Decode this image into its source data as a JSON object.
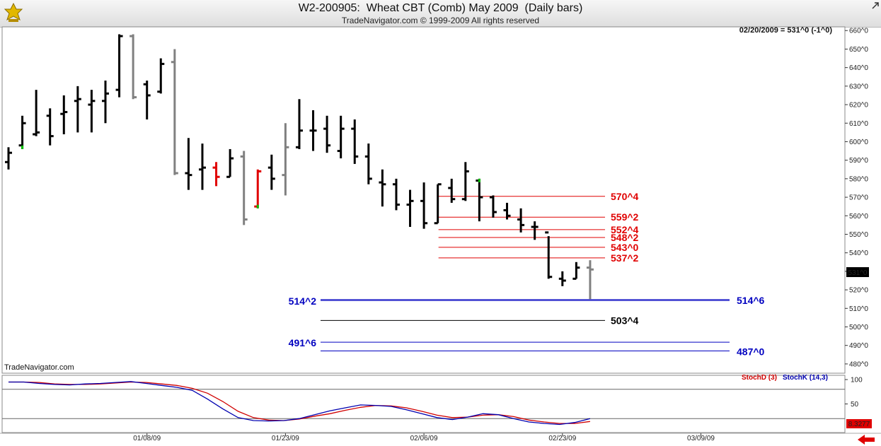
{
  "header": {
    "title": "W2-200905:  Wheat CBT (Comb) May 2009  (Daily bars)",
    "subtitle": "TradeNavigator.com © 1999-2009 All rights reserved"
  },
  "info": {
    "readout": "02/20/2009 = 531^0 (-1^0)",
    "watermark": "TradeNavigator.com",
    "last_price_label": "531^0",
    "stoch_value_label": "8.3277"
  },
  "colors": {
    "bar_default": "#000000",
    "bar_gray": "#808080",
    "bar_red": "#e00000",
    "bar_green_mark": "#00c000",
    "resistance": "#e00000",
    "support": "#0000c0",
    "stochD": "#d00000",
    "stochK": "#0000b0"
  },
  "chart_data": {
    "type": "ohlc-bar",
    "price_axis": {
      "ylim": [
        475,
        662
      ],
      "ticks": [
        "660^0",
        "650^0",
        "640^0",
        "630^0",
        "620^0",
        "610^0",
        "600^0",
        "590^0",
        "580^0",
        "570^0",
        "560^0",
        "550^0",
        "540^0",
        "530^0",
        "520^0",
        "510^0",
        "500^0",
        "490^0",
        "480^0"
      ]
    },
    "date_labels": [
      "01/08/09",
      "01/23/09",
      "02/06/09",
      "02/23/09",
      "03/09/09"
    ],
    "bars": [
      {
        "o": 589,
        "h": 597,
        "l": 585,
        "c": 594,
        "color": "default"
      },
      {
        "o": 598,
        "h": 614,
        "l": 596,
        "c": 610,
        "color": "default",
        "mark": "green-low"
      },
      {
        "o": 604,
        "h": 628,
        "l": 603,
        "c": 605,
        "color": "default"
      },
      {
        "o": 614,
        "h": 618,
        "l": 598,
        "c": 603,
        "color": "default"
      },
      {
        "o": 615,
        "h": 625,
        "l": 604,
        "c": 616,
        "color": "default"
      },
      {
        "o": 622,
        "h": 630,
        "l": 605,
        "c": 623,
        "color": "default"
      },
      {
        "o": 620,
        "h": 628,
        "l": 605,
        "c": 622,
        "color": "default"
      },
      {
        "o": 622,
        "h": 633,
        "l": 610,
        "c": 626,
        "color": "default"
      },
      {
        "o": 628,
        "h": 658,
        "l": 624,
        "c": 657,
        "color": "default"
      },
      {
        "o": 657,
        "h": 658,
        "l": 623,
        "c": 624,
        "color": "gray"
      },
      {
        "o": 631,
        "h": 633,
        "l": 612,
        "c": 625,
        "color": "default"
      },
      {
        "o": 627,
        "h": 645,
        "l": 626,
        "c": 642,
        "color": "default"
      },
      {
        "o": 643,
        "h": 650,
        "l": 582,
        "c": 583,
        "color": "gray"
      },
      {
        "o": 583,
        "h": 602,
        "l": 574,
        "c": 582,
        "color": "default"
      },
      {
        "o": 585,
        "h": 599,
        "l": 574,
        "c": 586,
        "color": "default"
      },
      {
        "o": 586,
        "h": 589,
        "l": 576,
        "c": 581,
        "color": "red"
      },
      {
        "o": 581,
        "h": 596,
        "l": 581,
        "c": 591,
        "color": "default"
      },
      {
        "o": 592,
        "h": 595,
        "l": 555,
        "c": 558,
        "color": "gray"
      },
      {
        "o": 565,
        "h": 585,
        "l": 564,
        "c": 584,
        "color": "red",
        "mark": "green-low"
      },
      {
        "o": 586,
        "h": 593,
        "l": 574,
        "c": 580,
        "color": "default"
      },
      {
        "o": 582,
        "h": 610,
        "l": 571,
        "c": 597,
        "color": "gray"
      },
      {
        "o": 597,
        "h": 623,
        "l": 596,
        "c": 606,
        "color": "default"
      },
      {
        "o": 606,
        "h": 617,
        "l": 595,
        "c": 606,
        "color": "default"
      },
      {
        "o": 607,
        "h": 614,
        "l": 594,
        "c": 598,
        "color": "default"
      },
      {
        "o": 595,
        "h": 614,
        "l": 591,
        "c": 607,
        "color": "default"
      },
      {
        "o": 607,
        "h": 612,
        "l": 588,
        "c": 592,
        "color": "default"
      },
      {
        "o": 592,
        "h": 599,
        "l": 577,
        "c": 580,
        "color": "default"
      },
      {
        "o": 578,
        "h": 585,
        "l": 565,
        "c": 577,
        "color": "default"
      },
      {
        "o": 577,
        "h": 580,
        "l": 563,
        "c": 566,
        "color": "default"
      },
      {
        "o": 566,
        "h": 574,
        "l": 554,
        "c": 568,
        "color": "default"
      },
      {
        "o": 568,
        "h": 578,
        "l": 553,
        "c": 556,
        "color": "default"
      },
      {
        "o": 556,
        "h": 577,
        "l": 556,
        "c": 577,
        "color": "default"
      },
      {
        "o": 575,
        "h": 580,
        "l": 567,
        "c": 569,
        "color": "default"
      },
      {
        "o": 569,
        "h": 589,
        "l": 568,
        "c": 584,
        "color": "default"
      },
      {
        "o": 579,
        "h": 580,
        "l": 557,
        "c": 570,
        "color": "default",
        "mark": "green-high"
      },
      {
        "o": 570,
        "h": 571,
        "l": 559,
        "c": 562,
        "color": "default"
      },
      {
        "o": 563,
        "h": 567,
        "l": 558,
        "c": 560,
        "color": "default"
      },
      {
        "o": 558,
        "h": 564,
        "l": 551,
        "c": 555,
        "color": "default"
      },
      {
        "o": 554,
        "h": 557,
        "l": 547,
        "c": 554,
        "color": "default"
      },
      {
        "o": 551,
        "h": 549,
        "l": 526,
        "c": 527,
        "color": "default"
      },
      {
        "o": 526,
        "h": 530,
        "l": 522,
        "c": 525,
        "color": "default"
      },
      {
        "o": 526,
        "h": 535,
        "l": 526,
        "c": 532,
        "color": "default"
      },
      {
        "o": 532,
        "h": 536,
        "l": 515,
        "c": 531,
        "color": "gray"
      }
    ],
    "resistance_levels": [
      {
        "label": "570^4",
        "value": 570.5
      },
      {
        "label": "559^2",
        "value": 559.25
      },
      {
        "label": "552^4",
        "value": 552.5
      },
      {
        "label": "548^2",
        "value": 548.25
      },
      {
        "label": "543^0",
        "value": 543
      },
      {
        "label": "537^2",
        "value": 537.25
      }
    ],
    "support_levels": [
      {
        "left_label": "514^2",
        "right_label": "514^6",
        "values": [
          514.25,
          514.75
        ]
      },
      {
        "left_label": "491^6",
        "right_label": "487^0",
        "values": [
          491.75,
          487
        ]
      }
    ],
    "neutral_levels": [
      {
        "label": "503^4",
        "value": 503.5
      }
    ],
    "stochastic": {
      "title_d": "StochD (3)",
      "title_k": "StochK (14,3)",
      "ylim": [
        0,
        100
      ],
      "ticks": [
        "100",
        "50"
      ],
      "reference_lines": [
        80,
        20
      ],
      "stochK": [
        95,
        95,
        92,
        90,
        89,
        91,
        92,
        94,
        96,
        92,
        88,
        84,
        78,
        60,
        40,
        22,
        16,
        15,
        16,
        20,
        28,
        36,
        42,
        48,
        47,
        45,
        38,
        30,
        22,
        18,
        23,
        30,
        28,
        20,
        13,
        10,
        8,
        12,
        20
      ],
      "stochD": [
        95,
        95,
        94,
        91,
        90,
        90,
        91,
        93,
        95,
        94,
        91,
        88,
        82,
        72,
        55,
        35,
        22,
        17,
        16,
        19,
        25,
        30,
        37,
        43,
        47,
        46,
        42,
        35,
        27,
        22,
        23,
        27,
        28,
        24,
        17,
        13,
        10,
        10,
        14
      ]
    }
  }
}
